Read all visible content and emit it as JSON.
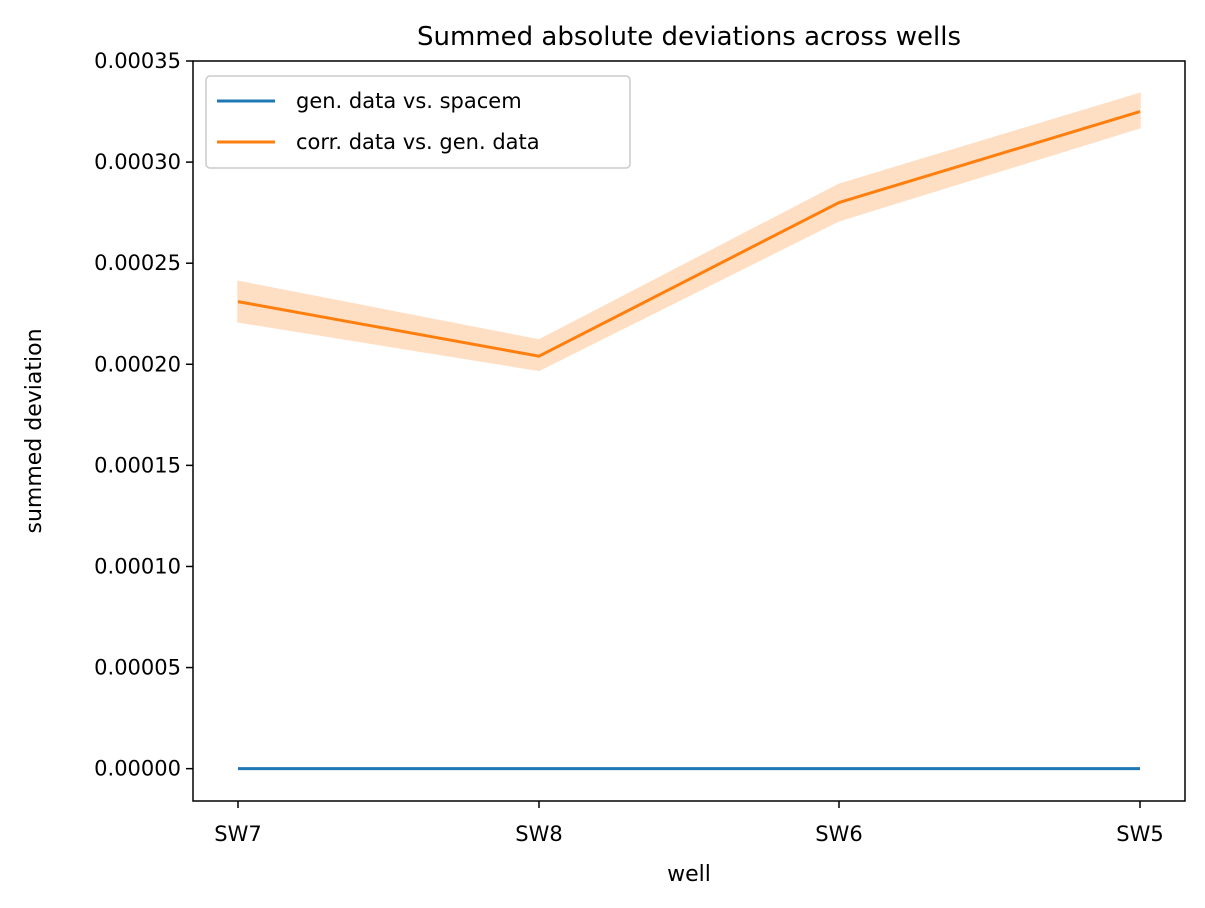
{
  "chart_data": {
    "type": "line",
    "title": "Summed absolute deviations across wells",
    "xlabel": "well",
    "ylabel": "summed deviation",
    "categories": [
      "SW7",
      "SW8",
      "SW6",
      "SW5"
    ],
    "ylim": [
      -1.6e-05,
      0.00035
    ],
    "yticks": [
      "0.00000",
      "0.00005",
      "0.00010",
      "0.00015",
      "0.00020",
      "0.00025",
      "0.00030",
      "0.00035"
    ],
    "ytick_values": [
      0,
      5e-05,
      0.0001,
      0.00015,
      0.0002,
      0.00025,
      0.0003,
      0.00035
    ],
    "grid": false,
    "legend_position": "top-left",
    "series": [
      {
        "name": "gen. data vs. spacem",
        "color": "#1f77b4",
        "values": [
          0,
          0,
          0,
          0
        ],
        "band_lower": [
          0,
          0,
          0,
          0
        ],
        "band_upper": [
          0,
          0,
          0,
          0
        ]
      },
      {
        "name": "corr. data vs. gen. data",
        "color": "#ff7f0e",
        "band_color": "#ffdfc4",
        "values": [
          0.000231,
          0.000204,
          0.00028,
          0.000325
        ],
        "band_lower": [
          0.000221,
          0.000197,
          0.000271,
          0.000317
        ],
        "band_upper": [
          0.000241,
          0.000212,
          0.000289,
          0.000334
        ]
      }
    ]
  }
}
